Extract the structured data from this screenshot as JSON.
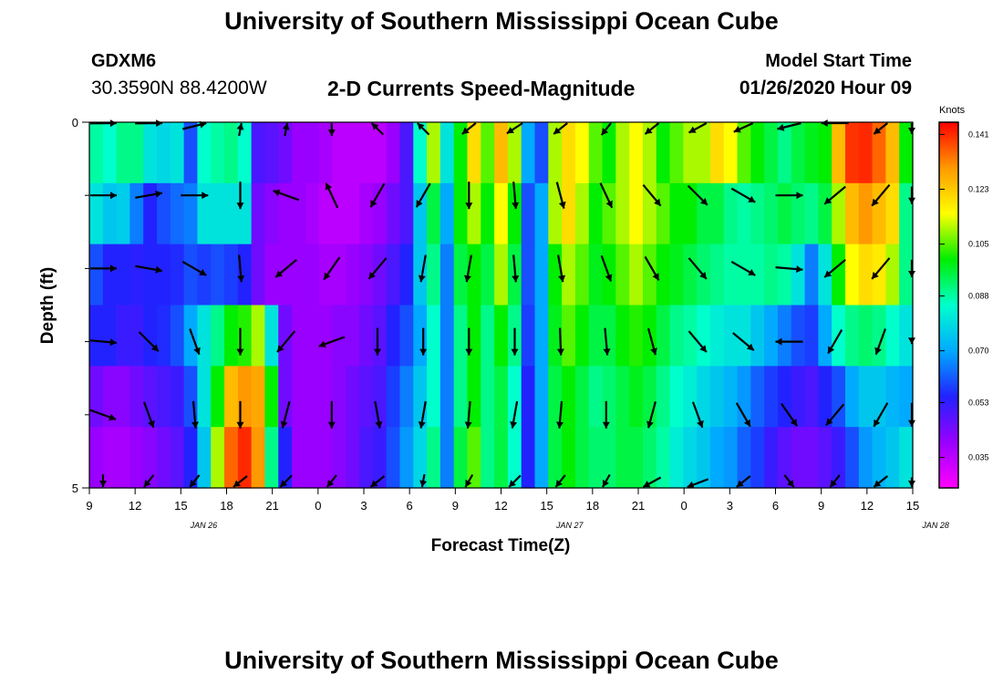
{
  "header": {
    "title": "University of Southern Mississippi Ocean Cube",
    "station_id": "GDXM6",
    "coords": "30.3590N 88.4200W",
    "plot_title": "2-D Currents Speed-Magnitude",
    "start_label": "Model Start Time",
    "start_value": "01/26/2020 Hour 09"
  },
  "footer": {
    "title": "University of Southern Mississippi Ocean Cube"
  },
  "chart_data": {
    "type": "heatmap",
    "title": "2-D Currents Speed-Magnitude",
    "xlabel": "Forecast Time(Z)",
    "ylabel": "Depth (ft)",
    "x_ticks": [
      "9",
      "12",
      "15",
      "18",
      "21",
      "0",
      "3",
      "6",
      "9",
      "12",
      "15",
      "18",
      "21",
      "0",
      "3",
      "6",
      "9",
      "12",
      "15"
    ],
    "x_day_labels": [
      {
        "label": "JAN 26",
        "hour": 16.5
      },
      {
        "label": "JAN 27",
        "hour": 40.5
      },
      {
        "label": "JAN 28",
        "hour": 64.5
      }
    ],
    "xlim_hours_from_start": [
      0,
      54
    ],
    "y_tick_labels": [
      "0",
      "5"
    ],
    "y_minor_ticks": [
      1,
      2,
      3,
      4
    ],
    "ylim": [
      0,
      5
    ],
    "colorbar": {
      "unit": "Knots",
      "ticks": [
        "0.141",
        "0.123",
        "0.105",
        "0.088",
        "0.070",
        "0.053",
        "0.035"
      ],
      "range": [
        0.025,
        0.145
      ],
      "colors": [
        "#ff00ff",
        "#9900ff",
        "#2222ff",
        "#00aaff",
        "#00ffcc",
        "#00ee00",
        "#ffff00",
        "#ff9900",
        "#ff0000"
      ]
    },
    "depth_layers": [
      {
        "name": "0-1 ft",
        "values": [
          0.088,
          0.085,
          0.09,
          0.09,
          0.08,
          0.078,
          0.08,
          0.06,
          0.085,
          0.088,
          0.09,
          0.085,
          0.05,
          0.048,
          0.045,
          0.04,
          0.04,
          0.038,
          0.035,
          0.035,
          0.035,
          0.035,
          0.04,
          0.05,
          0.085,
          0.11,
          0.08,
          0.1,
          0.12,
          0.105,
          0.125,
          0.11,
          0.07,
          0.06,
          0.11,
          0.12,
          0.115,
          0.105,
          0.1,
          0.11,
          0.115,
          0.11,
          0.1,
          0.105,
          0.11,
          0.11,
          0.12,
          0.115,
          0.105,
          0.1,
          0.095,
          0.09,
          0.095,
          0.098,
          0.1,
          0.125,
          0.14,
          0.141,
          0.135,
          0.125,
          0.1
        ]
      },
      {
        "name": "1-2 ft",
        "values": [
          0.08,
          0.075,
          0.076,
          0.065,
          0.055,
          0.06,
          0.063,
          0.065,
          0.08,
          0.08,
          0.08,
          0.08,
          0.045,
          0.042,
          0.04,
          0.04,
          0.038,
          0.035,
          0.035,
          0.035,
          0.038,
          0.04,
          0.045,
          0.05,
          0.075,
          0.095,
          0.07,
          0.1,
          0.11,
          0.1,
          0.115,
          0.1,
          0.06,
          0.07,
          0.11,
          0.12,
          0.11,
          0.1,
          0.105,
          0.11,
          0.115,
          0.11,
          0.105,
          0.1,
          0.1,
          0.095,
          0.095,
          0.09,
          0.088,
          0.09,
          0.092,
          0.095,
          0.092,
          0.09,
          0.095,
          0.11,
          0.125,
          0.13,
          0.125,
          0.12,
          0.09
        ]
      },
      {
        "name": "2-3 ft",
        "values": [
          0.06,
          0.055,
          0.055,
          0.054,
          0.055,
          0.055,
          0.056,
          0.06,
          0.058,
          0.06,
          0.058,
          0.055,
          0.045,
          0.04,
          0.04,
          0.04,
          0.04,
          0.038,
          0.038,
          0.04,
          0.042,
          0.045,
          0.05,
          0.055,
          0.075,
          0.09,
          0.065,
          0.095,
          0.1,
          0.095,
          0.11,
          0.095,
          0.06,
          0.07,
          0.1,
          0.11,
          0.105,
          0.098,
          0.1,
          0.105,
          0.11,
          0.105,
          0.1,
          0.098,
          0.095,
          0.092,
          0.09,
          0.088,
          0.088,
          0.088,
          0.09,
          0.088,
          0.08,
          0.065,
          0.08,
          0.1,
          0.115,
          0.12,
          0.118,
          0.11,
          0.09
        ]
      },
      {
        "name": "3-4 ft",
        "values": [
          0.055,
          0.055,
          0.052,
          0.052,
          0.055,
          0.056,
          0.06,
          0.07,
          0.08,
          0.09,
          0.1,
          0.102,
          0.11,
          0.08,
          0.045,
          0.04,
          0.04,
          0.04,
          0.042,
          0.042,
          0.045,
          0.048,
          0.055,
          0.06,
          0.07,
          0.085,
          0.065,
          0.09,
          0.1,
          0.09,
          0.1,
          0.09,
          0.058,
          0.07,
          0.098,
          0.105,
          0.1,
          0.095,
          0.095,
          0.1,
          0.102,
          0.1,
          0.095,
          0.09,
          0.088,
          0.085,
          0.082,
          0.08,
          0.08,
          0.075,
          0.07,
          0.065,
          0.06,
          0.058,
          0.07,
          0.085,
          0.09,
          0.092,
          0.09,
          0.085,
          0.08
        ]
      },
      {
        "name": "4-5 ft",
        "values": [
          0.045,
          0.042,
          0.042,
          0.045,
          0.048,
          0.05,
          0.052,
          0.06,
          0.08,
          0.1,
          0.125,
          0.13,
          0.128,
          0.1,
          0.045,
          0.04,
          0.04,
          0.04,
          0.042,
          0.045,
          0.048,
          0.05,
          0.058,
          0.065,
          0.075,
          0.085,
          0.065,
          0.09,
          0.1,
          0.09,
          0.095,
          0.085,
          0.055,
          0.07,
          0.095,
          0.1,
          0.095,
          0.09,
          0.092,
          0.095,
          0.098,
          0.095,
          0.09,
          0.085,
          0.082,
          0.078,
          0.075,
          0.072,
          0.068,
          0.062,
          0.058,
          0.055,
          0.052,
          0.05,
          0.055,
          0.06,
          0.07,
          0.075,
          0.075,
          0.072,
          0.07
        ]
      },
      {
        "name": "5 ft",
        "values": [
          0.04,
          0.038,
          0.038,
          0.04,
          0.042,
          0.045,
          0.048,
          0.055,
          0.075,
          0.11,
          0.135,
          0.141,
          0.13,
          0.09,
          0.055,
          0.04,
          0.04,
          0.04,
          0.042,
          0.045,
          0.05,
          0.052,
          0.06,
          0.068,
          0.078,
          0.09,
          0.065,
          0.095,
          0.105,
          0.09,
          0.095,
          0.085,
          0.055,
          0.07,
          0.095,
          0.1,
          0.095,
          0.092,
          0.092,
          0.095,
          0.095,
          0.092,
          0.088,
          0.082,
          0.078,
          0.075,
          0.07,
          0.068,
          0.062,
          0.058,
          0.052,
          0.048,
          0.045,
          0.045,
          0.048,
          0.052,
          0.06,
          0.068,
          0.072,
          0.075,
          0.08
        ]
      }
    ],
    "vectors_row_depths": [
      0,
      1,
      2,
      3,
      4,
      5
    ],
    "vectors_hours": [
      0,
      3,
      6,
      9,
      12,
      15,
      18,
      21,
      24,
      27,
      30,
      33,
      36,
      39,
      42,
      45,
      48,
      51,
      54
    ],
    "vector_angles_deg": [
      [
        95,
        95,
        120,
        175,
        175,
        0,
        205,
        205,
        330,
        325,
        330,
        340,
        330,
        320,
        315,
        300,
        270,
        330,
        330
      ],
      [
        90,
        100,
        90,
        0,
        250,
        205,
        330,
        330,
        0,
        5,
        15,
        25,
        40,
        45,
        60,
        90,
        310,
        320,
        310
      ],
      [
        90,
        80,
        60,
        5,
        310,
        325,
        320,
        350,
        350,
        5,
        10,
        20,
        30,
        40,
        60,
        85,
        310,
        320,
        310
      ],
      [
        85,
        45,
        20,
        0,
        320,
        290,
        0,
        0,
        0,
        0,
        2,
        5,
        15,
        40,
        50,
        270,
        330,
        340,
        280
      ],
      [
        70,
        20,
        5,
        0,
        345,
        0,
        10,
        350,
        355,
        350,
        355,
        0,
        345,
        20,
        30,
        35,
        320,
        330,
        330
      ],
      [
        0,
        340,
        340,
        330,
        335,
        340,
        330,
        355,
        345,
        335,
        340,
        345,
        320,
        310,
        330,
        20,
        340,
        330,
        320
      ]
    ]
  }
}
